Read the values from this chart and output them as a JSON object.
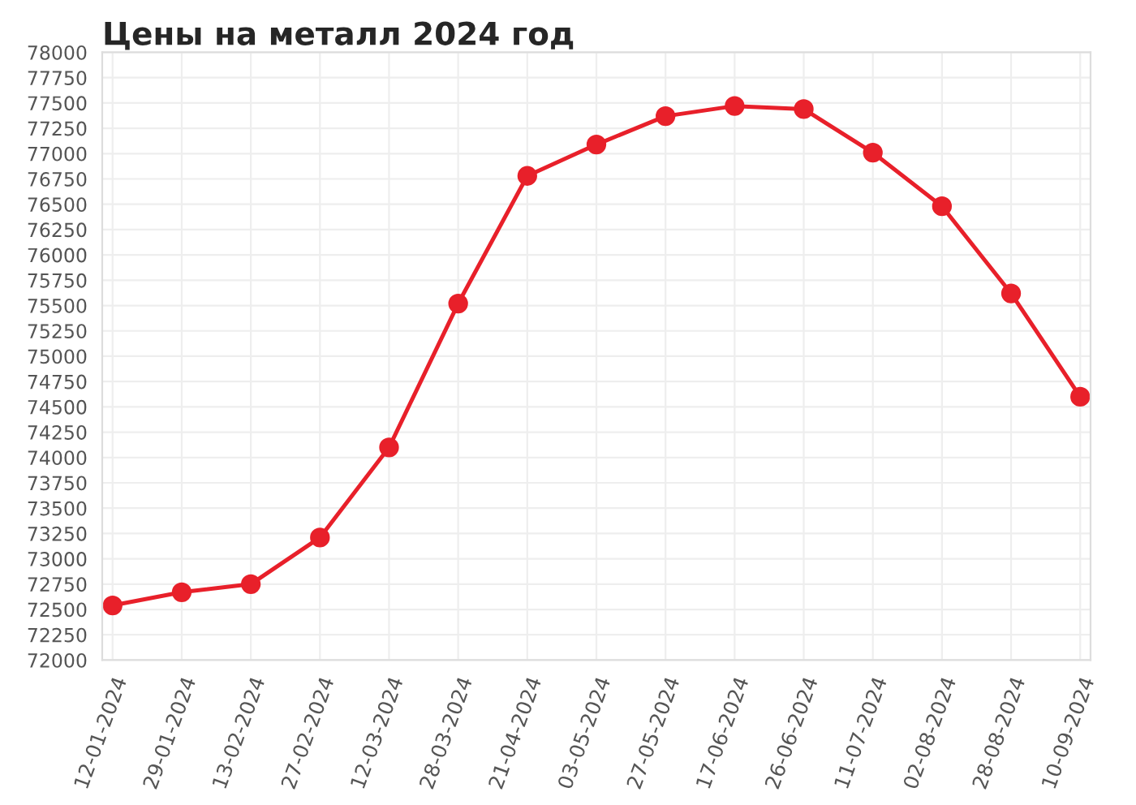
{
  "chart_data": {
    "type": "line",
    "title": "Цены на металл 2024 год",
    "categories": [
      "12-01-2024",
      "29-01-2024",
      "13-02-2024",
      "27-02-2024",
      "12-03-2024",
      "28-03-2024",
      "21-04-2024",
      "03-05-2024",
      "27-05-2024",
      "17-06-2024",
      "26-06-2024",
      "11-07-2024",
      "02-08-2024",
      "28-08-2024",
      "10-09-2024"
    ],
    "series": [
      {
        "color": "#e8202a",
        "values": [
          72540,
          72670,
          72750,
          73210,
          74100,
          75520,
          76780,
          77090,
          77370,
          77470,
          77440,
          77010,
          76480,
          75620,
          74600
        ]
      }
    ],
    "ylim": [
      72000,
      78000
    ],
    "yticks": [
      72000,
      72250,
      72500,
      72750,
      73000,
      73250,
      73500,
      73750,
      74000,
      74250,
      74500,
      74750,
      75000,
      75250,
      75500,
      75750,
      76000,
      76250,
      76500,
      76750,
      77000,
      77250,
      77500,
      77750,
      78000
    ],
    "grid": true,
    "marker": "circle",
    "line_style": "solid"
  }
}
